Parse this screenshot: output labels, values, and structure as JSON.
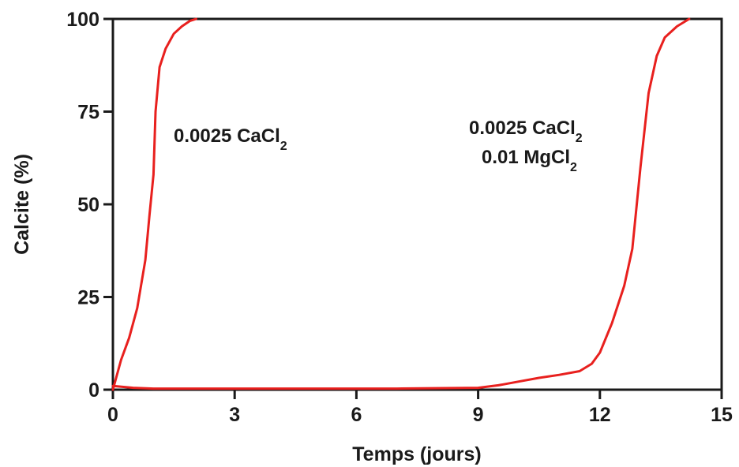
{
  "chart_data": {
    "type": "line",
    "title": "",
    "xlabel": "Temps (jours)",
    "ylabel": "Calcite (%)",
    "xlim": [
      0,
      15
    ],
    "ylim": [
      0,
      100
    ],
    "xticks": [
      "0",
      "3",
      "6",
      "9",
      "12",
      "15"
    ],
    "yticks": [
      "0",
      "25",
      "50",
      "75",
      "100"
    ],
    "grid": false,
    "line_color": "#e8201e",
    "series": [
      {
        "x": [
          0,
          0.2,
          0.4,
          0.6,
          0.8,
          0.9,
          1.0,
          1.05,
          1.15,
          1.3,
          1.5,
          1.7,
          1.9,
          2.05
        ],
        "y": [
          0,
          8,
          14,
          22,
          35,
          47,
          58,
          75,
          87,
          92,
          96,
          98,
          99.5,
          100
        ]
      },
      {
        "x": [
          0,
          0.5,
          1,
          3,
          5,
          7,
          9,
          9.5,
          10,
          10.5,
          11,
          11.5,
          11.8,
          12,
          12.3,
          12.6,
          12.8,
          13.0,
          13.2,
          13.4,
          13.6,
          13.9,
          14.2
        ],
        "y": [
          1,
          0.5,
          0.3,
          0.3,
          0.3,
          0.3,
          0.5,
          1.2,
          2.2,
          3.2,
          4,
          5,
          7,
          10,
          18,
          28,
          38,
          60,
          80,
          90,
          95,
          98,
          100
        ]
      }
    ],
    "annotations": [
      {
        "lines": [
          {
            "text": "0.0025 CaCl",
            "sub": "2"
          }
        ]
      },
      {
        "lines": [
          {
            "text": "0.0025 CaCl",
            "sub": "2"
          },
          {
            "text": "0.01 MgCl",
            "sub": "2"
          }
        ]
      }
    ]
  }
}
